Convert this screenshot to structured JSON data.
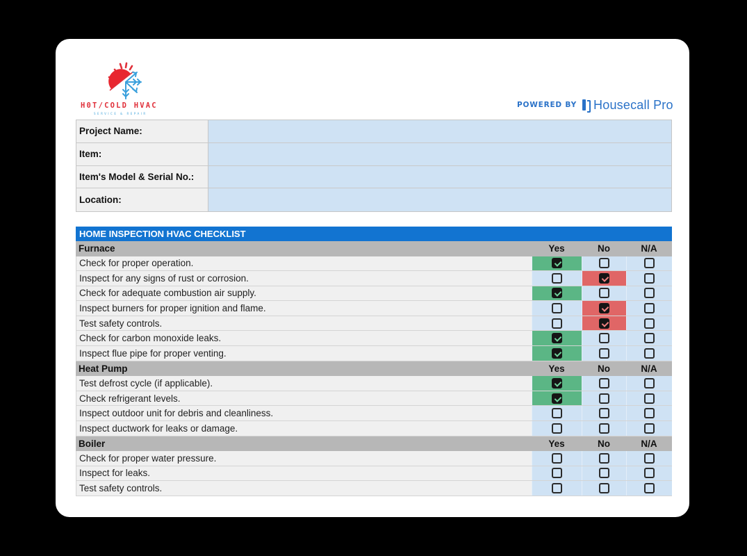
{
  "brand": {
    "logo_title": "H0T/COLD HVAC",
    "logo_subtitle": "SERVICE & REPAIR",
    "powered_by": "POWERED BY",
    "partner_name": "Housecall Pro",
    "accent_color": "#1274d1"
  },
  "project_info": [
    {
      "label": "Project Name:",
      "value": ""
    },
    {
      "label": "Item:",
      "value": ""
    },
    {
      "label": "Item's Model & Serial No.:",
      "value": ""
    },
    {
      "label": "Location:",
      "value": ""
    }
  ],
  "checklist": {
    "title": "HOME INSPECTION HVAC CHECKLIST",
    "columns": {
      "yes": "Yes",
      "no": "No",
      "na": "N/A"
    },
    "colors": {
      "yes": "#5bb685",
      "no": "#e06666",
      "empty": "#cfe2f4"
    },
    "sections": [
      {
        "name": "Furnace",
        "items": [
          {
            "text": "Check for proper operation.",
            "answer": "yes"
          },
          {
            "text": "Inspect for any signs of rust or corrosion.",
            "answer": "no"
          },
          {
            "text": "Check for adequate combustion air supply.",
            "answer": "yes"
          },
          {
            "text": "Inspect burners for proper ignition and flame.",
            "answer": "no"
          },
          {
            "text": "Test safety controls.",
            "answer": "no"
          },
          {
            "text": "Check for carbon monoxide leaks.",
            "answer": "yes"
          },
          {
            "text": "Inspect flue pipe for proper venting.",
            "answer": "yes"
          }
        ]
      },
      {
        "name": "Heat Pump",
        "items": [
          {
            "text": "Test defrost cycle (if applicable).",
            "answer": "yes"
          },
          {
            "text": "Check refrigerant levels.",
            "answer": "yes"
          },
          {
            "text": "Inspect outdoor unit for debris and cleanliness.",
            "answer": ""
          },
          {
            "text": "Inspect ductwork for leaks or damage.",
            "answer": ""
          }
        ]
      },
      {
        "name": "Boiler",
        "items": [
          {
            "text": "Check for proper water pressure.",
            "answer": ""
          },
          {
            "text": "Inspect for leaks.",
            "answer": ""
          },
          {
            "text": "Test safety controls.",
            "answer": ""
          }
        ]
      }
    ]
  }
}
